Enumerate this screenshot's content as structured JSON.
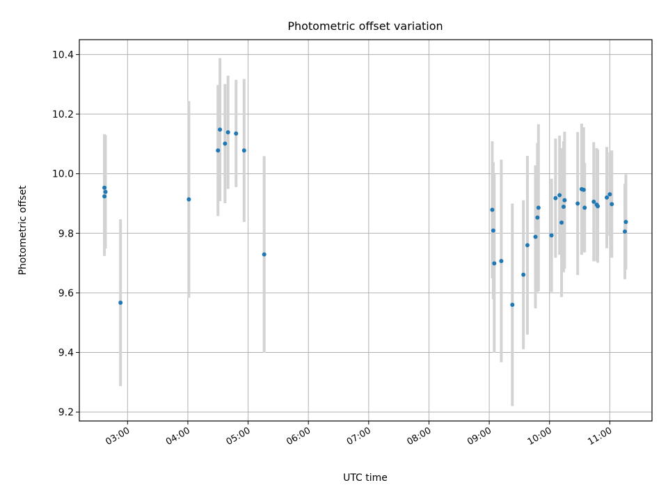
{
  "chart_data": {
    "type": "scatter",
    "title": "Photometric offset variation",
    "xlabel": "UTC time",
    "ylabel": "Photometric offset",
    "xlim": [
      "02:12",
      "11:42"
    ],
    "ylim": [
      9.17,
      10.45
    ],
    "xticks": [
      "03:00",
      "04:00",
      "05:00",
      "06:00",
      "07:00",
      "08:00",
      "09:00",
      "10:00",
      "11:00"
    ],
    "yticks": [
      9.2,
      9.4,
      9.6,
      9.8,
      10.0,
      10.2,
      10.4
    ],
    "ytick_labels": [
      "9.2",
      "9.4",
      "9.6",
      "9.8",
      "10.0",
      "10.2",
      "10.4"
    ],
    "grid": true,
    "errorbar_color": "#d3d3d3",
    "marker_color": "#1f77b4",
    "points": [
      {
        "x": "02:37",
        "y": 9.953,
        "err": 0.18
      },
      {
        "x": "02:37",
        "y": 9.924,
        "err": 0.2
      },
      {
        "x": "02:38",
        "y": 9.939,
        "err": 0.19
      },
      {
        "x": "02:53",
        "y": 9.567,
        "err": 0.28
      },
      {
        "x": "04:01",
        "y": 9.914,
        "err": 0.33
      },
      {
        "x": "04:30",
        "y": 10.078,
        "err": 0.22
      },
      {
        "x": "04:32",
        "y": 10.148,
        "err": 0.24
      },
      {
        "x": "04:37",
        "y": 10.101,
        "err": 0.2
      },
      {
        "x": "04:40",
        "y": 10.139,
        "err": 0.19
      },
      {
        "x": "04:48",
        "y": 10.135,
        "err": 0.18
      },
      {
        "x": "04:56",
        "y": 10.078,
        "err": 0.24
      },
      {
        "x": "05:16",
        "y": 9.729,
        "err": 0.33
      },
      {
        "x": "09:03",
        "y": 9.879,
        "err": 0.23
      },
      {
        "x": "09:04",
        "y": 9.809,
        "err": 0.23
      },
      {
        "x": "09:05",
        "y": 9.699,
        "err": 0.3
      },
      {
        "x": "09:12",
        "y": 9.707,
        "err": 0.34
      },
      {
        "x": "09:23",
        "y": 9.56,
        "err": 0.34
      },
      {
        "x": "09:34",
        "y": 9.661,
        "err": 0.25
      },
      {
        "x": "09:38",
        "y": 9.76,
        "err": 0.3
      },
      {
        "x": "09:46",
        "y": 9.788,
        "err": 0.24
      },
      {
        "x": "09:48",
        "y": 9.853,
        "err": 0.25
      },
      {
        "x": "09:49",
        "y": 9.886,
        "err": 0.28
      },
      {
        "x": "10:02",
        "y": 9.793,
        "err": 0.19
      },
      {
        "x": "10:06",
        "y": 9.918,
        "err": 0.2
      },
      {
        "x": "10:10",
        "y": 9.928,
        "err": 0.2
      },
      {
        "x": "10:12",
        "y": 9.836,
        "err": 0.25
      },
      {
        "x": "10:14",
        "y": 9.889,
        "err": 0.22
      },
      {
        "x": "10:15",
        "y": 9.911,
        "err": 0.23
      },
      {
        "x": "10:28",
        "y": 9.9,
        "err": 0.24
      },
      {
        "x": "10:32",
        "y": 9.948,
        "err": 0.22
      },
      {
        "x": "10:34",
        "y": 9.946,
        "err": 0.21
      },
      {
        "x": "10:35",
        "y": 9.886,
        "err": 0.15
      },
      {
        "x": "10:44",
        "y": 9.906,
        "err": 0.2
      },
      {
        "x": "10:47",
        "y": 9.896,
        "err": 0.19
      },
      {
        "x": "10:48",
        "y": 9.891,
        "err": 0.19
      },
      {
        "x": "10:57",
        "y": 9.92,
        "err": 0.17
      },
      {
        "x": "11:00",
        "y": 9.931,
        "err": 0.14
      },
      {
        "x": "11:02",
        "y": 9.898,
        "err": 0.18
      },
      {
        "x": "11:15",
        "y": 9.806,
        "err": 0.16
      },
      {
        "x": "11:16",
        "y": 9.838,
        "err": 0.16
      }
    ]
  }
}
